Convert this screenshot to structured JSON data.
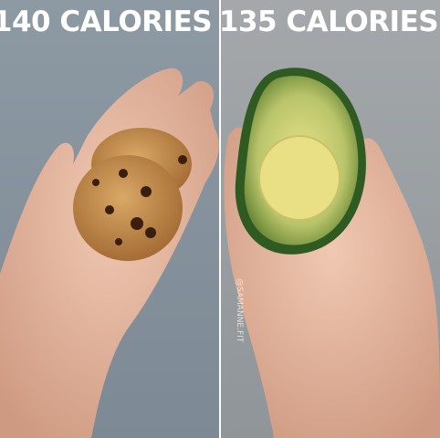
{
  "panels": [
    {
      "caption": "140 CALORIES"
    },
    {
      "caption": "135 CALORIES"
    }
  ],
  "watermark": "@SAMANNE.FIT"
}
